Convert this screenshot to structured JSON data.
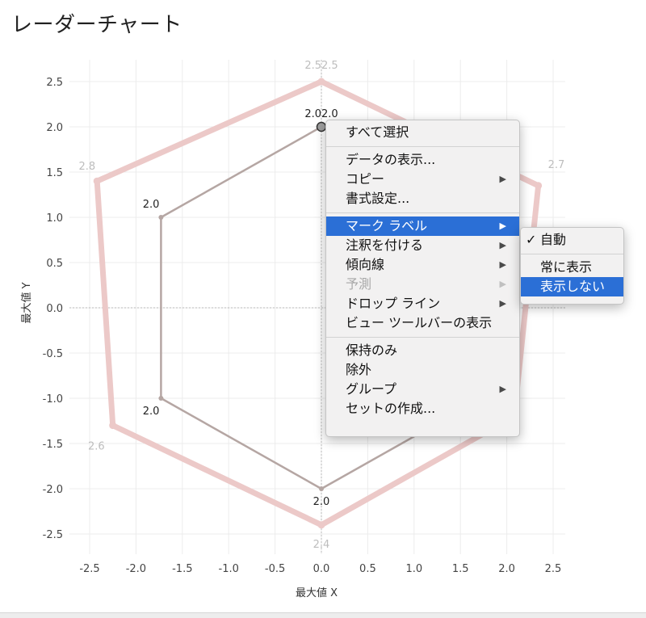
{
  "title": "レーダーチャート",
  "chart_data": {
    "type": "scatter",
    "xlabel": "最大値 X",
    "ylabel": "最大値 Y",
    "xlim": [
      -2.6,
      2.6
    ],
    "ylim": [
      -2.7,
      2.7
    ],
    "xticks": [
      "-2.5",
      "-2.0",
      "-1.5",
      "-1.0",
      "-0.5",
      "0.0",
      "0.5",
      "1.0",
      "1.5",
      "2.0",
      "2.5"
    ],
    "yticks": [
      "2.5",
      "2.0",
      "1.5",
      "1.0",
      "0.5",
      "0.0",
      "-0.5",
      "-1.0",
      "-1.5",
      "-2.0",
      "-2.5"
    ],
    "grid": true,
    "series": [
      {
        "color": "#ecc9c8",
        "points": [
          {
            "x": 0.0,
            "y": 2.5,
            "label": "2.52.5"
          },
          {
            "x": 2.34,
            "y": 1.35,
            "label": "2.7"
          },
          {
            "x": 2.08,
            "y": -1.2,
            "label": "2.4"
          },
          {
            "x": 0.0,
            "y": -2.4,
            "label": "2.4"
          },
          {
            "x": -2.25,
            "y": -1.3,
            "label": "2.6"
          },
          {
            "x": -2.42,
            "y": 1.4,
            "label": "2.8"
          }
        ]
      },
      {
        "color": "#b5a6a3",
        "points": [
          {
            "x": 0.0,
            "y": 2.0,
            "label": "2.02.0"
          },
          {
            "x": 1.73,
            "y": 1.0,
            "label": ""
          },
          {
            "x": 1.73,
            "y": -1.0,
            "label": ""
          },
          {
            "x": 0.0,
            "y": -2.0,
            "label": "2.0"
          },
          {
            "x": -1.73,
            "y": -1.0,
            "label": "2.0"
          },
          {
            "x": -1.73,
            "y": 1.0,
            "label": "2.0"
          }
        ]
      }
    ]
  },
  "context_menu": {
    "items": [
      {
        "label": "すべて選択",
        "submenu": false
      },
      {
        "separator": true
      },
      {
        "label": "データの表示...",
        "submenu": false
      },
      {
        "label": "コピー",
        "submenu": true
      },
      {
        "label": "書式設定...",
        "submenu": false
      },
      {
        "separator": true
      },
      {
        "label": "マーク ラベル",
        "submenu": true,
        "selected": true
      },
      {
        "label": "注釈を付ける",
        "submenu": true
      },
      {
        "label": "傾向線",
        "submenu": true
      },
      {
        "label": "予測",
        "submenu": true,
        "disabled": true
      },
      {
        "label": "ドロップ ライン",
        "submenu": true
      },
      {
        "label": "ビュー ツールバーの表示",
        "submenu": false
      },
      {
        "separator": true
      },
      {
        "label": "保持のみ",
        "submenu": false
      },
      {
        "label": "除外",
        "submenu": false
      },
      {
        "label": "グループ",
        "submenu": true
      },
      {
        "label": "セットの作成...",
        "submenu": false
      }
    ]
  },
  "submenu": {
    "items": [
      {
        "label": "自動",
        "checked": true
      },
      {
        "separator": true
      },
      {
        "label": "常に表示"
      },
      {
        "label": "表示しない",
        "selected": true
      }
    ]
  }
}
